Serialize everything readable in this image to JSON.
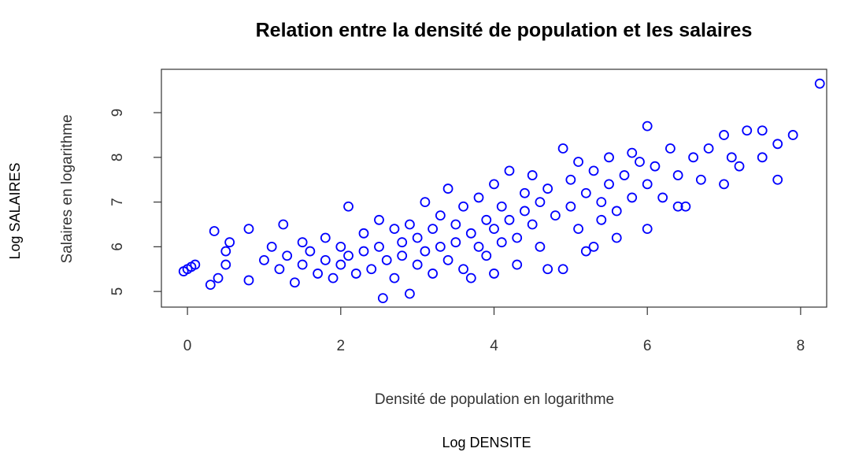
{
  "chart_data": {
    "type": "scatter",
    "title": "Relation entre la densité de population et les salaires",
    "xlabel": "Densité de population en logarithme",
    "ylabel": "Salaires en logarithme",
    "outer_xlabel": "Log DENSITE",
    "outer_ylabel": "Log SALAIRES",
    "color": "#0000ff",
    "grid": false,
    "xlim": [
      -0.34,
      8.34
    ],
    "ylim": [
      4.65,
      9.97
    ],
    "xticks": [
      0,
      2,
      4,
      6,
      8
    ],
    "yticks": [
      5,
      6,
      7,
      8,
      9
    ],
    "x": [
      -0.05,
      0,
      0.05,
      0.1,
      0.35,
      0.3,
      0.4,
      0.5,
      0.55,
      0.5,
      0.8,
      0.8,
      1,
      1.1,
      1.2,
      1.25,
      1.3,
      1.4,
      1.5,
      1.5,
      1.6,
      1.7,
      1.8,
      1.8,
      1.9,
      2,
      2,
      2.1,
      2.1,
      2.2,
      2.3,
      2.3,
      2.4,
      2.5,
      2.5,
      2.55,
      2.6,
      2.7,
      2.7,
      2.8,
      2.8,
      2.9,
      2.9,
      3,
      3,
      3.1,
      3.1,
      3.2,
      3.2,
      3.3,
      3.3,
      3.4,
      3.4,
      3.5,
      3.5,
      3.6,
      3.6,
      3.7,
      3.8,
      3.8,
      3.9,
      3.9,
      4,
      4,
      4,
      4.1,
      4.1,
      4.2,
      4.2,
      4.3,
      4.3,
      4.4,
      4.4,
      4.5,
      4.5,
      4.6,
      4.6,
      4.7,
      4.7,
      4.8,
      4.9,
      4.9,
      5,
      5,
      5.1,
      5.1,
      5.2,
      5.2,
      5.3,
      5.4,
      5.4,
      5.5,
      5.5,
      5.6,
      5.6,
      5.7,
      5.8,
      5.8,
      5.9,
      6,
      6,
      6,
      6.1,
      6.2,
      6.3,
      6.4,
      6.5,
      6.6,
      6.7,
      6.8,
      7,
      7,
      7.1,
      7.2,
      7.3,
      7.5,
      7.5,
      7.7,
      7.7,
      7.9,
      8.25,
      5.3,
      6.4,
      3.7
    ],
    "values": [
      5.45,
      5.5,
      5.55,
      5.6,
      6.35,
      5.15,
      5.3,
      5.6,
      6.1,
      5.9,
      6.4,
      5.25,
      5.7,
      6,
      5.5,
      6.5,
      5.8,
      5.2,
      6.1,
      5.6,
      5.9,
      5.4,
      6.2,
      5.7,
      5.3,
      6,
      5.6,
      6.9,
      5.8,
      5.4,
      6.3,
      5.9,
      5.5,
      6.6,
      6,
      4.85,
      5.7,
      6.4,
      5.3,
      6.1,
      5.8,
      4.95,
      6.5,
      6.2,
      5.6,
      7,
      5.9,
      6.4,
      5.4,
      6.7,
      6,
      7.3,
      5.7,
      6.5,
      6.1,
      6.9,
      5.5,
      6.3,
      7.1,
      6,
      6.6,
      5.8,
      7.4,
      6.4,
      5.4,
      6.9,
      6.1,
      7.7,
      6.6,
      6.2,
      5.6,
      7.2,
      6.8,
      7.6,
      6.5,
      7,
      6,
      5.5,
      7.3,
      6.7,
      8.2,
      5.5,
      7.5,
      6.9,
      7.9,
      6.4,
      7.2,
      5.9,
      7.7,
      7,
      6.6,
      8,
      7.4,
      6.8,
      6.2,
      7.6,
      8.1,
      7.1,
      7.9,
      8.7,
      6.4,
      7.4,
      7.8,
      7.1,
      8.2,
      7.6,
      6.9,
      8,
      7.5,
      8.2,
      7.4,
      8.5,
      8,
      7.8,
      8.6,
      8.6,
      8,
      7.5,
      8.3,
      8.5,
      9.65,
      6,
      6.9,
      5.3
    ]
  }
}
